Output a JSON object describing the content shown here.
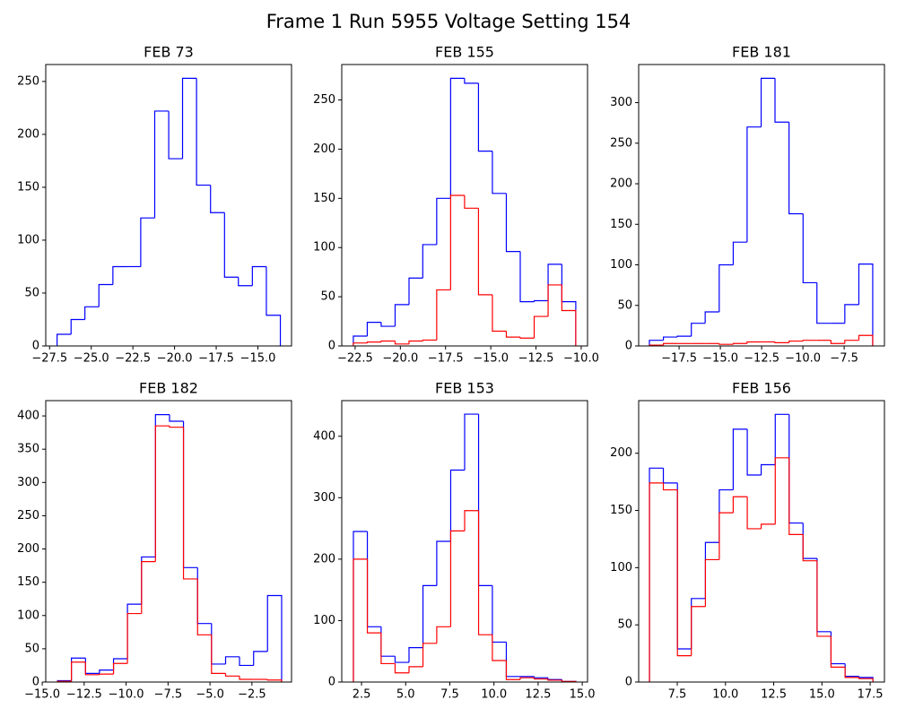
{
  "title": "Frame 1 Run 5955 Voltage Setting 154",
  "chart_data": [
    {
      "type": "histogram",
      "title": "FEB 73",
      "bins": [
        -27.05,
        -26.21,
        -25.38,
        -24.54,
        -23.7,
        -22.86,
        -22.03,
        -21.19,
        -20.35,
        -19.52,
        -18.68,
        -17.84,
        -17.0,
        -16.17,
        -15.33,
        -14.49,
        -13.65
      ],
      "series": [
        {
          "color": "#0000ff",
          "values": [
            11,
            25,
            37,
            58,
            75,
            75,
            121,
            222,
            177,
            253,
            152,
            126,
            65,
            57,
            75,
            29
          ]
        }
      ],
      "xlim": [
        -27.73,
        -12.98
      ],
      "ylim": [
        0,
        266
      ],
      "xticks": [
        {
          "value": -27.5,
          "label": "−27.5"
        },
        {
          "value": -25,
          "label": "−25.0"
        },
        {
          "value": -22.5,
          "label": "−22.5"
        },
        {
          "value": -20,
          "label": "−20.0"
        },
        {
          "value": -17.5,
          "label": "−17.5"
        },
        {
          "value": -15,
          "label": "−15.0"
        }
      ],
      "yticks": [
        0,
        50,
        100,
        150,
        200,
        250
      ]
    },
    {
      "type": "histogram",
      "title": "FEB 155",
      "bins": [
        -22.6,
        -21.83,
        -21.06,
        -20.29,
        -19.52,
        -18.76,
        -17.99,
        -17.22,
        -16.45,
        -15.68,
        -14.91,
        -14.14,
        -13.37,
        -12.6,
        -11.83,
        -11.07,
        -10.3
      ],
      "series": [
        {
          "color": "#0000ff",
          "values": [
            10,
            24,
            20,
            42,
            69,
            103,
            150,
            272,
            267,
            198,
            155,
            96,
            45,
            46,
            83,
            45
          ]
        },
        {
          "color": "#ff0000",
          "values": [
            3,
            4,
            5,
            2,
            5,
            6,
            57,
            153,
            140,
            52,
            15,
            9,
            8,
            30,
            62,
            36
          ]
        }
      ],
      "xlim": [
        -23.24,
        -9.65
      ],
      "ylim": [
        0,
        286
      ],
      "xticks": [
        {
          "value": -22.5,
          "label": "−22.5"
        },
        {
          "value": -20,
          "label": "−20.0"
        },
        {
          "value": -17.5,
          "label": "−17.5"
        },
        {
          "value": -15,
          "label": "−15.0"
        },
        {
          "value": -12.5,
          "label": "−12.5"
        },
        {
          "value": -10,
          "label": "−10.0"
        }
      ],
      "yticks": [
        0,
        50,
        100,
        150,
        200,
        250
      ]
    },
    {
      "type": "histogram",
      "title": "FEB 181",
      "bins": [
        -19.3,
        -18.45,
        -17.61,
        -16.76,
        -15.92,
        -15.07,
        -14.22,
        -13.38,
        -12.53,
        -11.69,
        -10.84,
        -9.99,
        -9.15,
        -8.3,
        -7.46,
        -6.61,
        -5.77
      ],
      "series": [
        {
          "color": "#0000ff",
          "values": [
            7,
            11,
            12,
            28,
            42,
            100,
            128,
            270,
            330,
            276,
            163,
            78,
            28,
            28,
            51,
            101
          ]
        },
        {
          "color": "#ff0000",
          "values": [
            1,
            3,
            3,
            3,
            3,
            2,
            3,
            5,
            5,
            4,
            6,
            7,
            7,
            3,
            7,
            13
          ]
        }
      ],
      "xlim": [
        -19.95,
        -5.06
      ],
      "ylim": [
        0,
        347
      ],
      "xticks": [
        {
          "value": -17.5,
          "label": "−17.5"
        },
        {
          "value": -15,
          "label": "−15.0"
        },
        {
          "value": -12.5,
          "label": "−12.5"
        },
        {
          "value": -10,
          "label": "−10.0"
        },
        {
          "value": -7.5,
          "label": "−7.5"
        }
      ],
      "yticks": [
        0,
        50,
        100,
        150,
        200,
        250,
        300
      ]
    },
    {
      "type": "histogram",
      "title": "FEB 182",
      "bins": [
        -14.09,
        -13.26,
        -12.42,
        -11.59,
        -10.75,
        -9.92,
        -9.08,
        -8.25,
        -7.41,
        -6.58,
        -5.74,
        -4.91,
        -4.07,
        -3.24,
        -2.4,
        -1.57,
        -0.73
      ],
      "series": [
        {
          "color": "#0000ff",
          "values": [
            2,
            36,
            13,
            18,
            35,
            117,
            188,
            402,
            392,
            172,
            88,
            27,
            38,
            25,
            46,
            130
          ]
        },
        {
          "color": "#ff0000",
          "values": [
            1,
            30,
            11,
            12,
            28,
            103,
            181,
            385,
            383,
            155,
            71,
            13,
            9,
            4,
            4,
            3
          ]
        }
      ],
      "xlim": [
        -14.79,
        -0.14
      ],
      "ylim": [
        0,
        423
      ],
      "xticks": [
        {
          "value": -15,
          "label": "−15.0"
        },
        {
          "value": -12.5,
          "label": "−12.5"
        },
        {
          "value": -10,
          "label": "−10.0"
        },
        {
          "value": -7.5,
          "label": "−7.5"
        },
        {
          "value": -5,
          "label": "−5.0"
        },
        {
          "value": -2.5,
          "label": "−2.5"
        }
      ],
      "yticks": [
        0,
        50,
        100,
        150,
        200,
        250,
        300,
        350,
        400
      ]
    },
    {
      "type": "histogram",
      "title": "FEB 153",
      "bins": [
        2.04,
        2.83,
        3.61,
        4.4,
        5.19,
        5.98,
        6.76,
        7.55,
        8.34,
        9.13,
        9.91,
        10.7,
        11.49,
        12.28,
        13.06,
        13.85,
        14.64
      ],
      "series": [
        {
          "color": "#0000ff",
          "values": [
            245,
            90,
            42,
            32,
            56,
            157,
            229,
            345,
            436,
            157,
            65,
            9,
            9,
            7,
            4,
            1
          ]
        },
        {
          "color": "#ff0000",
          "values": [
            200,
            80,
            30,
            15,
            25,
            63,
            90,
            246,
            279,
            77,
            35,
            4,
            7,
            5,
            3,
            1
          ]
        }
      ],
      "xlim": [
        1.38,
        15.3
      ],
      "ylim": [
        0,
        458
      ],
      "xticks": [
        {
          "value": 2.5,
          "label": "2.5"
        },
        {
          "value": 5,
          "label": "5.0"
        },
        {
          "value": 7.5,
          "label": "7.5"
        },
        {
          "value": 10,
          "label": "10.0"
        },
        {
          "value": 12.5,
          "label": "12.5"
        },
        {
          "value": 15,
          "label": "15.0"
        }
      ],
      "yticks": [
        0,
        100,
        200,
        300,
        400
      ]
    },
    {
      "type": "histogram",
      "title": "FEB 156",
      "bins": [
        6.06,
        6.78,
        7.51,
        8.23,
        8.96,
        9.68,
        10.4,
        11.13,
        11.85,
        12.58,
        13.3,
        14.02,
        14.75,
        15.47,
        16.2,
        16.92,
        17.64
      ],
      "series": [
        {
          "color": "#0000ff",
          "values": [
            187,
            174,
            29,
            73,
            122,
            168,
            221,
            181,
            190,
            234,
            139,
            108,
            44,
            16,
            5,
            4
          ]
        },
        {
          "color": "#ff0000",
          "values": [
            174,
            168,
            23,
            66,
            107,
            148,
            162,
            134,
            138,
            196,
            129,
            106,
            40,
            13,
            4,
            3
          ]
        }
      ],
      "xlim": [
        5.5,
        18.24
      ],
      "ylim": [
        0,
        246
      ],
      "xticks": [
        {
          "value": 7.5,
          "label": "7.5"
        },
        {
          "value": 10,
          "label": "10.0"
        },
        {
          "value": 12.5,
          "label": "12.5"
        },
        {
          "value": 15,
          "label": "15.0"
        },
        {
          "value": 17.5,
          "label": "17.5"
        }
      ],
      "yticks": [
        0,
        50,
        100,
        150,
        200
      ]
    }
  ]
}
